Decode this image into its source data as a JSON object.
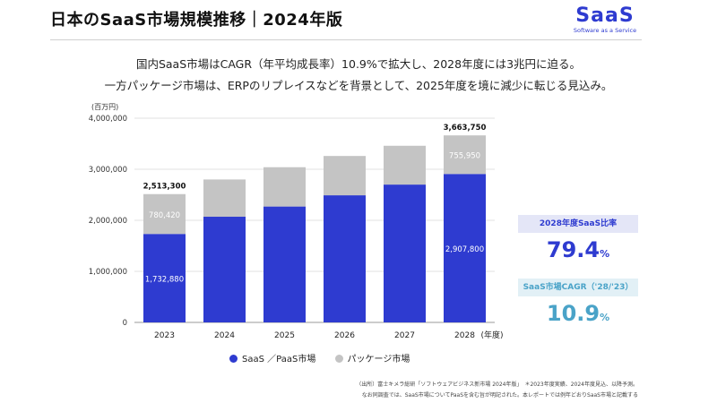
{
  "header": {
    "title": "日本のSaaS市場規模推移｜2024年版",
    "logo_word": "SaaS",
    "logo_tag": "Software as a Service"
  },
  "lead": {
    "line1": "国内SaaS市場はCAGR（年平均成長率）10.9%で拡大し、2028年度には3兆円に迫る。",
    "line2": "一方パッケージ市場は、ERPのリプレイスなどを背景として、2025年度を境に減少に転じる見込み。"
  },
  "chart_data": {
    "type": "bar",
    "stacked": true,
    "unit_label": "(百万円)",
    "x_suffix": "(年度)",
    "categories": [
      "2023",
      "2024",
      "2025",
      "2026",
      "2027",
      "2028"
    ],
    "series": [
      {
        "name": "SaaS ／PaaS市場",
        "color": "#2e3bd0",
        "values": [
          1732880,
          2070000,
          2270000,
          2490000,
          2700000,
          2907800
        ]
      },
      {
        "name": "パッケージ市場",
        "color": "#c4c4c4",
        "values": [
          780420,
          730000,
          770000,
          770000,
          760000,
          755950
        ]
      }
    ],
    "ylim": [
      0,
      4000000
    ],
    "yticks": [
      0,
      1000000,
      2000000,
      3000000,
      4000000
    ],
    "ytick_labels": [
      "0",
      "1,000,000",
      "2,000,000",
      "3,000,000",
      "4,000,000"
    ],
    "grid": true,
    "data_labels": [
      {
        "index": 0,
        "saas": "1,732,880",
        "package": "780,420",
        "total": "2,513,300"
      },
      {
        "index": 5,
        "saas": "2,907,800",
        "package": "755,950",
        "total": "3,663,750"
      }
    ],
    "legend_position": "bottom"
  },
  "kpis": [
    {
      "label": "2028年度SaaS比率",
      "value": "79.4",
      "unit": "%",
      "color": "#2e3bd0"
    },
    {
      "label": "SaaS市場CAGR（'28/'23）",
      "value": "10.9",
      "unit": "%",
      "color": "#4aa3c8"
    }
  ],
  "source": {
    "line1": "（出所）富士キメラ総研「ソフトウェアビジネス新市場 2024年版」　＊2023年度実績、2024年度見込、以降予測。",
    "line2": "なお同調査では、SaaS市場についてPaaSを含む旨が明記された。本レポートでは例年どおりSaaS市場と記載する"
  }
}
